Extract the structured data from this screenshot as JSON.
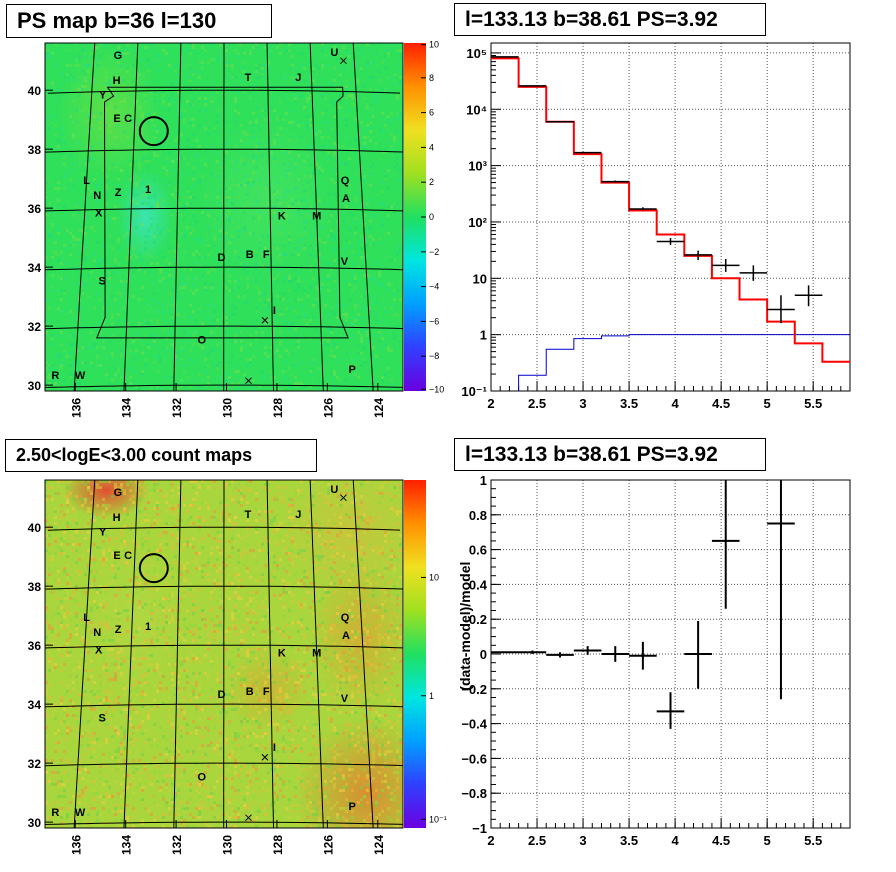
{
  "panels": {
    "ps_map_title": "PS map b=36 l=130",
    "spectrum_title": "l=133.13 b=38.61 PS=3.92",
    "count_map_title": "2.50<logE<3.00 count maps",
    "residual_title": "l=133.13 b=38.61 PS=3.92"
  },
  "colors": {
    "model_line": "#ff0000",
    "background_line": "#0000cc",
    "data_points": "#000000",
    "ps_map_field": "#2ee05a",
    "count_map_field": "#a9d63c",
    "hot_spot": "#e8762c"
  },
  "sky_maps": {
    "b_ticks": [
      "30",
      "32",
      "34",
      "36",
      "38",
      "40"
    ],
    "l_ticks": [
      "136",
      "134",
      "132",
      "130",
      "128",
      "126",
      "124"
    ],
    "source_labels": [
      {
        "t": "G",
        "l": 134.9,
        "b": 41.2
      },
      {
        "t": "U",
        "l": 124.9,
        "b": 41.3
      },
      {
        "t": "H",
        "l": 134.9,
        "b": 40.35
      },
      {
        "t": "T",
        "l": 128.9,
        "b": 40.45
      },
      {
        "t": "J",
        "l": 126.6,
        "b": 40.45
      },
      {
        "t": "Y",
        "l": 135.5,
        "b": 39.85
      },
      {
        "t": "E",
        "l": 134.8,
        "b": 39.05
      },
      {
        "t": "C",
        "l": 134.3,
        "b": 39.05
      },
      {
        "t": "L",
        "l": 136.0,
        "b": 36.95
      },
      {
        "t": "Q",
        "l": 124.7,
        "b": 36.95
      },
      {
        "t": "Z",
        "l": 134.6,
        "b": 36.55
      },
      {
        "t": "1",
        "l": 133.3,
        "b": 36.65
      },
      {
        "t": "N",
        "l": 135.5,
        "b": 36.45
      },
      {
        "t": "A",
        "l": 124.7,
        "b": 36.35
      },
      {
        "t": "X",
        "l": 135.4,
        "b": 35.85
      },
      {
        "t": "K",
        "l": 127.5,
        "b": 35.75
      },
      {
        "t": "M",
        "l": 126.0,
        "b": 35.75
      },
      {
        "t": "D",
        "l": 130.1,
        "b": 34.35
      },
      {
        "t": "B",
        "l": 128.9,
        "b": 34.45
      },
      {
        "t": "F",
        "l": 128.2,
        "b": 34.45
      },
      {
        "t": "V",
        "l": 124.9,
        "b": 34.2
      },
      {
        "t": "S",
        "l": 135.1,
        "b": 33.55
      },
      {
        "t": "I",
        "l": 127.9,
        "b": 32.55
      },
      {
        "t": "O",
        "l": 130.9,
        "b": 31.55
      },
      {
        "t": "P",
        "l": 124.8,
        "b": 30.55
      },
      {
        "t": "R",
        "l": 136.8,
        "b": 30.35
      },
      {
        "t": "W",
        "l": 135.8,
        "b": 30.35
      }
    ],
    "crosses": [
      {
        "l": 124.5,
        "b": 41.0
      },
      {
        "l": 128.3,
        "b": 32.2
      },
      {
        "l": 129.0,
        "b": 30.15
      }
    ],
    "circle_center": {
      "l": 133.13,
      "b": 38.61
    }
  },
  "ps_colorbar": {
    "ticks": [
      "10",
      "8",
      "6",
      "4",
      "2",
      "0",
      "−2",
      "−4",
      "−6",
      "−8",
      "−10"
    ]
  },
  "count_colorbar": {
    "ticks": [
      "10",
      "1",
      "10⁻¹"
    ]
  },
  "chart_data": [
    {
      "type": "line",
      "log_y": true,
      "xlim": [
        2.0,
        5.9
      ],
      "ylim": [
        0.1,
        150000
      ],
      "x_ticks": [
        "2",
        "2.5",
        "3",
        "3.5",
        "4",
        "4.5",
        "5",
        "5.5"
      ],
      "y_ticks": [
        "10⁻¹",
        "1",
        "10",
        "10²",
        "10³",
        "10⁴",
        "10⁵"
      ],
      "grid": true,
      "series": [
        {
          "kind": "model_histogram",
          "edges": [
            2.0,
            2.3,
            2.6,
            2.9,
            3.2,
            3.5,
            3.8,
            4.1,
            4.4,
            4.7,
            5.0,
            5.3,
            5.6,
            5.9
          ],
          "values": [
            80000,
            25000,
            6000,
            1600,
            500,
            160,
            60,
            25,
            10,
            4.2,
            1.7,
            0.7,
            0.33
          ]
        },
        {
          "kind": "background_histogram",
          "edges": [
            2.0,
            2.3,
            2.6,
            2.9,
            3.2,
            3.5,
            3.8,
            4.1,
            4.4,
            4.7,
            5.0,
            5.3,
            5.6,
            5.9
          ],
          "values": [
            0.07,
            0.19,
            0.55,
            0.85,
            0.95,
            1.0,
            1.0,
            1.0,
            1.0,
            1.0,
            1.0,
            1.0,
            1.0
          ]
        },
        {
          "kind": "data_points",
          "points": [
            {
              "x": 2.15,
              "y": 85000,
              "ylo": 84000,
              "yhi": 86000
            },
            {
              "x": 2.45,
              "y": 26000,
              "ylo": 25500,
              "yhi": 26500
            },
            {
              "x": 2.75,
              "y": 6000,
              "ylo": 5900,
              "yhi": 6100
            },
            {
              "x": 3.05,
              "y": 1700,
              "ylo": 1650,
              "yhi": 1750
            },
            {
              "x": 3.35,
              "y": 520,
              "ylo": 500,
              "yhi": 545
            },
            {
              "x": 3.65,
              "y": 170,
              "ylo": 160,
              "yhi": 182
            },
            {
              "x": 3.95,
              "y": 45,
              "ylo": 39,
              "yhi": 52
            },
            {
              "x": 4.25,
              "y": 26,
              "ylo": 21,
              "yhi": 31
            },
            {
              "x": 4.55,
              "y": 17,
              "ylo": 13,
              "yhi": 22
            },
            {
              "x": 4.85,
              "y": 12.5,
              "ylo": 9,
              "yhi": 17
            },
            {
              "x": 5.15,
              "y": 2.8,
              "ylo": 1.6,
              "yhi": 5
            },
            {
              "x": 5.45,
              "y": 5,
              "ylo": 3.2,
              "yhi": 7.5
            }
          ]
        }
      ]
    },
    {
      "type": "scatter",
      "xlim": [
        2.0,
        5.9
      ],
      "ylim": [
        -1.0,
        1.0
      ],
      "x_ticks": [
        "2",
        "2.5",
        "3",
        "3.5",
        "4",
        "4.5",
        "5",
        "5.5"
      ],
      "y_ticks": [
        "−1",
        "−0.8",
        "−0.6",
        "−0.4",
        "−0.2",
        "0",
        "0.2",
        "0.4",
        "0.6",
        "0.8",
        "1"
      ],
      "ylabel": "(data-model)/model",
      "grid": true,
      "series": [
        {
          "kind": "residuals",
          "points": [
            {
              "x": 2.15,
              "y": 0.01,
              "ylo": 0.005,
              "yhi": 0.015
            },
            {
              "x": 2.45,
              "y": 0.01,
              "ylo": 0.0,
              "yhi": 0.02
            },
            {
              "x": 2.75,
              "y": -0.005,
              "ylo": -0.02,
              "yhi": 0.01
            },
            {
              "x": 3.05,
              "y": 0.02,
              "ylo": -0.005,
              "yhi": 0.045
            },
            {
              "x": 3.35,
              "y": 0.0,
              "ylo": -0.045,
              "yhi": 0.045
            },
            {
              "x": 3.65,
              "y": -0.01,
              "ylo": -0.09,
              "yhi": 0.07
            },
            {
              "x": 3.95,
              "y": -0.33,
              "ylo": -0.43,
              "yhi": -0.22
            },
            {
              "x": 4.25,
              "y": 0.0,
              "ylo": -0.2,
              "yhi": 0.19
            },
            {
              "x": 4.55,
              "y": 0.65,
              "ylo": 0.26,
              "yhi": 1.0
            },
            {
              "x": 5.15,
              "y": 0.75,
              "ylo": -0.26,
              "yhi": 1.0
            }
          ]
        }
      ]
    }
  ]
}
